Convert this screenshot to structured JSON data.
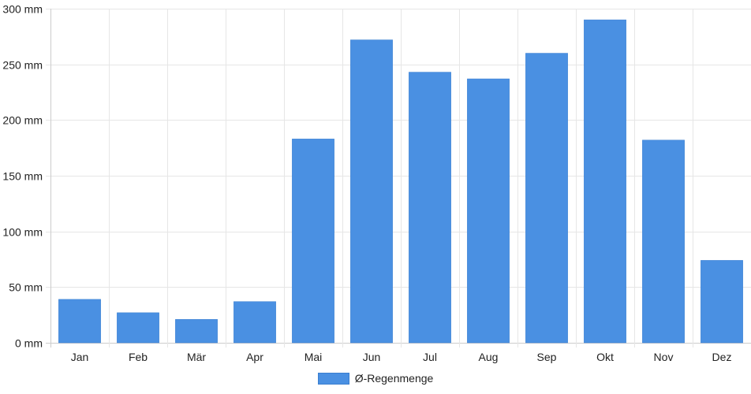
{
  "chart_data": {
    "type": "bar",
    "categories": [
      "Jan",
      "Feb",
      "Mär",
      "Apr",
      "Mai",
      "Jun",
      "Jul",
      "Aug",
      "Sep",
      "Okt",
      "Nov",
      "Dez"
    ],
    "series": [
      {
        "name": "Ø-Regenmenge",
        "values": [
          39,
          27,
          21,
          37,
          183,
          272,
          243,
          237,
          260,
          290,
          182,
          74
        ],
        "color": "#4a90e2"
      }
    ],
    "y_ticks": [
      "0 mm",
      "50 mm",
      "100 mm",
      "150 mm",
      "200 mm",
      "250 mm",
      "300 mm"
    ],
    "y_tick_values": [
      0,
      50,
      100,
      150,
      200,
      250,
      300
    ],
    "ylim": [
      0,
      300
    ],
    "grid": true,
    "legend_position": "bottom-center",
    "title": "",
    "xlabel": "",
    "ylabel": ""
  },
  "legend": {
    "label": "Ø-Regenmenge"
  },
  "colors": {
    "bar": "#4a90e2",
    "grid": "#e6e6e6",
    "axis": "#cccccc"
  }
}
